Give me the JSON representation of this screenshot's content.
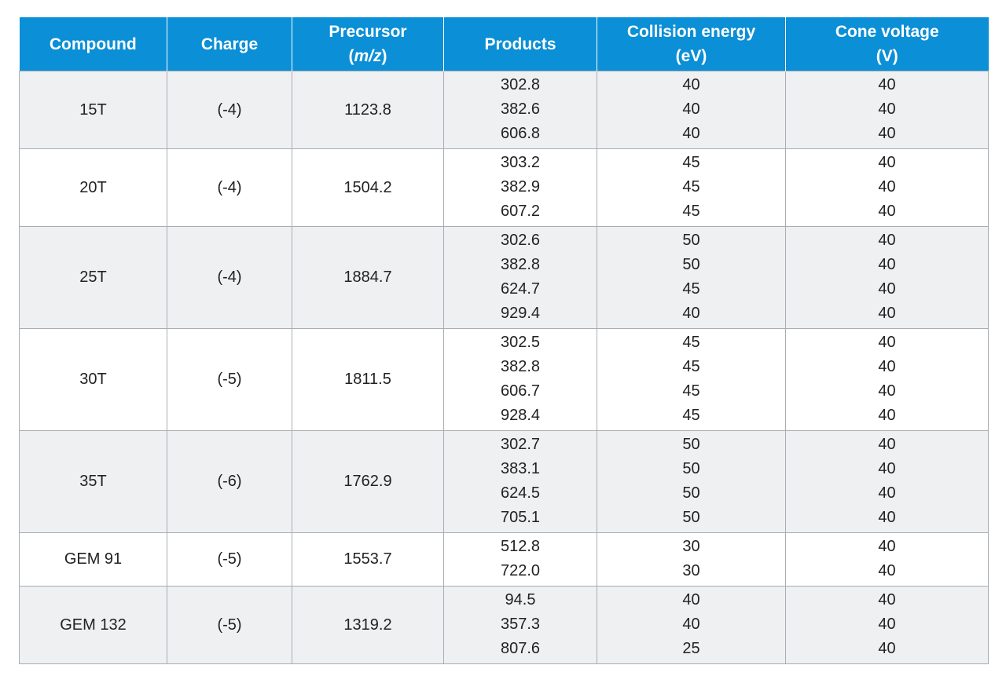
{
  "headers": {
    "compound": "Compound",
    "charge": "Charge",
    "precursor_line1": "Precursor",
    "precursor_unit": "(m/z)",
    "products": "Products",
    "collision_line1": "Collision energy",
    "collision_unit": "(eV)",
    "cone_line1": "Cone voltage",
    "cone_unit": "(V)"
  },
  "rows": [
    {
      "compound": "15T",
      "charge": "(-4)",
      "precursor": "1123.8",
      "products": [
        "302.8",
        "382.6",
        "606.8"
      ],
      "collision": [
        "40",
        "40",
        "40"
      ],
      "cone": [
        "40",
        "40",
        "40"
      ]
    },
    {
      "compound": "20T",
      "charge": "(-4)",
      "precursor": "1504.2",
      "products": [
        "303.2",
        "382.9",
        "607.2"
      ],
      "collision": [
        "45",
        "45",
        "45"
      ],
      "cone": [
        "40",
        "40",
        "40"
      ]
    },
    {
      "compound": "25T",
      "charge": "(-4)",
      "precursor": "1884.7",
      "products": [
        "302.6",
        "382.8",
        "624.7",
        "929.4"
      ],
      "collision": [
        "50",
        "50",
        "45",
        "40"
      ],
      "cone": [
        "40",
        "40",
        "40",
        "40"
      ]
    },
    {
      "compound": "30T",
      "charge": "(-5)",
      "precursor": "1811.5",
      "products": [
        "302.5",
        "382.8",
        "606.7",
        "928.4"
      ],
      "collision": [
        "45",
        "45",
        "45",
        "45"
      ],
      "cone": [
        "40",
        "40",
        "40",
        "40"
      ]
    },
    {
      "compound": "35T",
      "charge": "(-6)",
      "precursor": "1762.9",
      "products": [
        "302.7",
        "383.1",
        "624.5",
        "705.1"
      ],
      "collision": [
        "50",
        "50",
        "50",
        "50"
      ],
      "cone": [
        "40",
        "40",
        "40",
        "40"
      ]
    },
    {
      "compound": "GEM 91",
      "charge": "(-5)",
      "precursor": "1553.7",
      "products": [
        "512.8",
        "722.0"
      ],
      "collision": [
        "30",
        "30"
      ],
      "cone": [
        "40",
        "40"
      ]
    },
    {
      "compound": "GEM 132",
      "charge": "(-5)",
      "precursor": "1319.2",
      "products": [
        "94.5",
        "357.3",
        "807.6"
      ],
      "collision": [
        "40",
        "40",
        "25"
      ],
      "cone": [
        "40",
        "40",
        "40"
      ]
    }
  ]
}
